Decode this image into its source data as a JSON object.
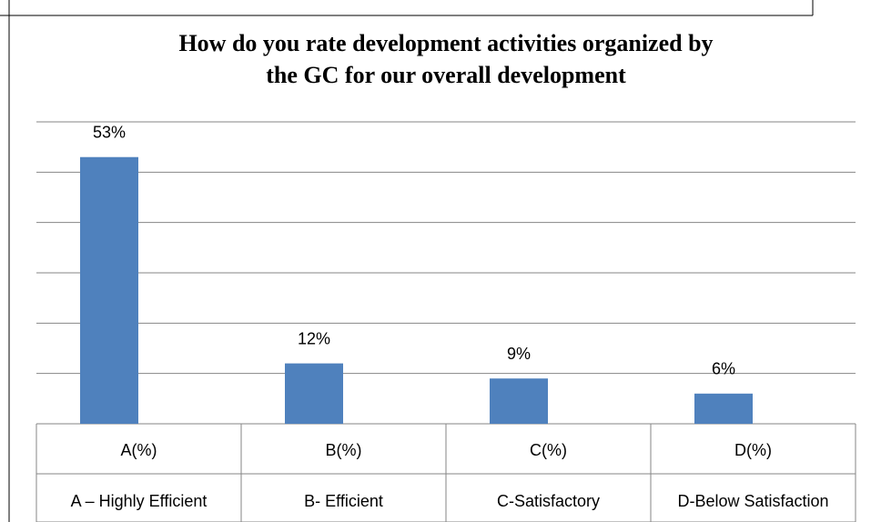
{
  "chart_data": {
    "type": "bar",
    "title": [
      "How do you rate development activities organized by",
      "the GC for our overall development"
    ],
    "categories": [
      "A(%)",
      "B(%)",
      "C(%)",
      "D(%)"
    ],
    "category_descriptions": [
      "A – Highly Efficient",
      "B- Efficient",
      "C-Satisfactory",
      "D-Below Satisfaction"
    ],
    "values": [
      53,
      12,
      9,
      6
    ],
    "value_labels": [
      "53%",
      "12%",
      "9%",
      "6%"
    ],
    "color": "#4f81bd",
    "ylim": [
      0,
      60
    ],
    "yticks": [
      0,
      10,
      20,
      30,
      40,
      50,
      60
    ],
    "grid": true
  }
}
